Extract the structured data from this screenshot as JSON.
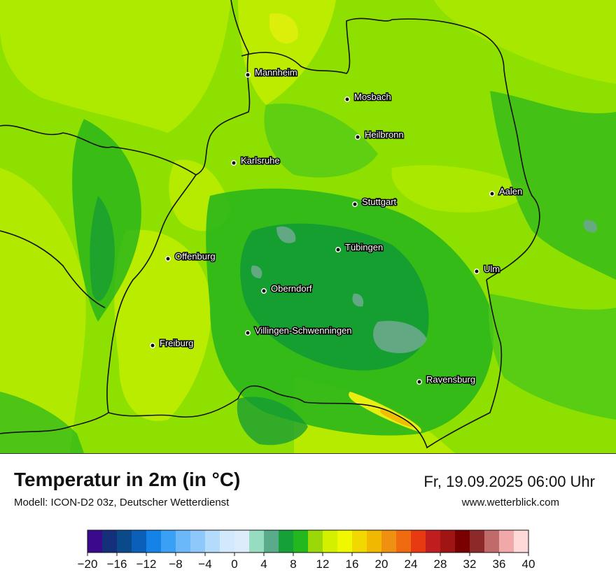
{
  "title": "Temperatur in 2m (in °C)",
  "model": "Modell: ICON-D2 03z, Deutscher Wetterdienst",
  "datetime": "Fr, 19.09.2025 06:00 Uhr",
  "website": "www.wetterblick.com",
  "cities": [
    {
      "name": "Mannheim"
    },
    {
      "name": "Mosbach"
    },
    {
      "name": "Heilbronn"
    },
    {
      "name": "Karlsruhe"
    },
    {
      "name": "Aalen"
    },
    {
      "name": "Stuttgart"
    },
    {
      "name": "Tübingen"
    },
    {
      "name": "Offenburg"
    },
    {
      "name": "Ulm"
    },
    {
      "name": "Oberndorf"
    },
    {
      "name": "Villingen-Schwenningen"
    },
    {
      "name": "Freiburg"
    },
    {
      "name": "Ravensburg"
    }
  ],
  "colorbar": {
    "tick_labels": [
      "−20",
      "−16",
      "−12",
      "−8",
      "−4",
      "0",
      "4",
      "8",
      "12",
      "16",
      "20",
      "24",
      "28",
      "32",
      "36",
      "40"
    ],
    "colors": [
      "#3a0a8c",
      "#14307a",
      "#0a4a8a",
      "#0a60b8",
      "#1482e6",
      "#3aa0f5",
      "#6ab8fa",
      "#8ec8fb",
      "#b4dafc",
      "#d2e8fd",
      "#dcecfb",
      "#96dcc0",
      "#5aaa8c",
      "#16a03a",
      "#22b81e",
      "#9ad808",
      "#d2f000",
      "#f0f800",
      "#f0d800",
      "#f0b800",
      "#f09010",
      "#f06a10",
      "#e83a10",
      "#c01e1e",
      "#a01414",
      "#7a0000",
      "#8c2a2a",
      "#c06a6a",
      "#f0a8a8",
      "#ffd8d8"
    ]
  },
  "map_colors": {
    "yellow_green": "#c8f000",
    "light_green": "#8ee000",
    "mid_green": "#4cc818",
    "green": "#24b41c",
    "dark_green": "#129a36",
    "teal": "#6aa88c",
    "yellow": "#f0f010",
    "orange": "#f0b800"
  }
}
